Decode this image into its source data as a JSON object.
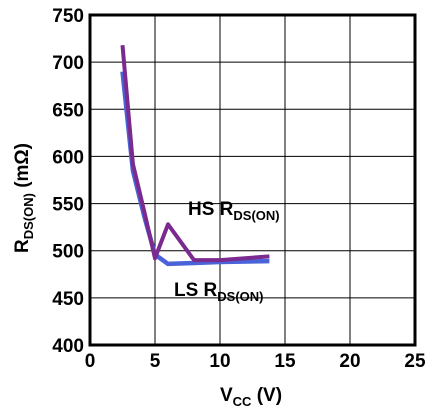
{
  "chart_data": {
    "type": "line",
    "xlabel": "V",
    "xlabel_sub": "CC",
    "xlabel_unit": " (V)",
    "ylabel": "R",
    "ylabel_sub": "DS(ON)",
    "ylabel_unit": " (mΩ)",
    "xlim": [
      0,
      25
    ],
    "ylim": [
      400,
      750
    ],
    "xticks": [
      0,
      5,
      10,
      15,
      20,
      25
    ],
    "yticks": [
      400,
      450,
      500,
      550,
      600,
      650,
      700,
      750
    ],
    "grid": true,
    "series": [
      {
        "name": "LS R",
        "name_sub": "DS(ON)",
        "color": "#4a63d8",
        "x": [
          2.5,
          3.3,
          4.2,
          5.0,
          6.0,
          8.0,
          10.0,
          13.8
        ],
        "y": [
          690,
          585,
          535,
          496,
          486,
          487,
          488,
          489
        ]
      },
      {
        "name": "HS R",
        "name_sub": "DS(ON)",
        "color": "#7b2a8f",
        "x": [
          2.5,
          3.3,
          4.2,
          5.0,
          6.0,
          8.0,
          10.0,
          13.8
        ],
        "y": [
          718,
          592,
          540,
          492,
          528,
          490,
          490,
          494
        ]
      }
    ]
  }
}
